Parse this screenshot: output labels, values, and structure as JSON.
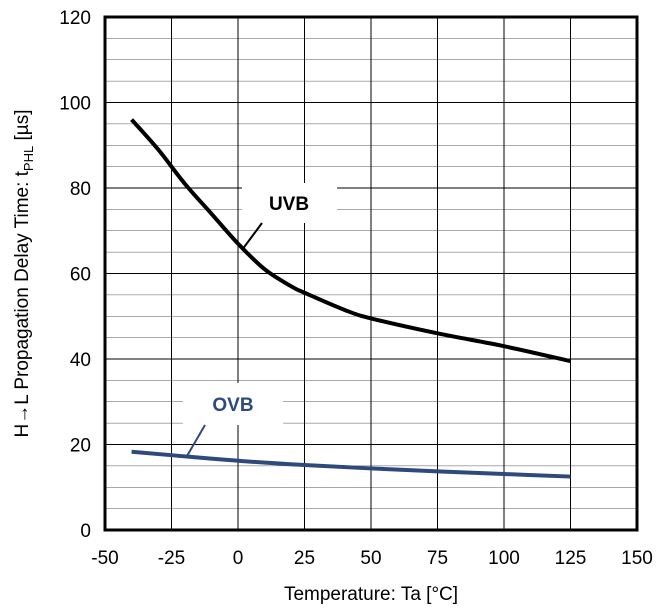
{
  "chart_data": {
    "type": "line",
    "title": "",
    "xlabel": "Temperature: Ta [°C]",
    "ylabel": {
      "prefix": "H→L Propagation Delay Time: t",
      "subscript": "PHL",
      "suffix": " [µs]"
    },
    "xlim": [
      -50,
      150
    ],
    "ylim": [
      0,
      120
    ],
    "xticks": [
      -50,
      -25,
      0,
      25,
      50,
      75,
      100,
      125,
      150
    ],
    "yticks": [
      0,
      20,
      40,
      60,
      80,
      100,
      120
    ],
    "x_minor_step": 25,
    "y_minor_step": 5,
    "grid": true,
    "series": [
      {
        "name": "UVB",
        "color": "#000000",
        "points": [
          [
            -40,
            96
          ],
          [
            -30,
            89
          ],
          [
            -20,
            81
          ],
          [
            -10,
            74
          ],
          [
            0,
            67
          ],
          [
            10,
            61
          ],
          [
            20,
            57
          ],
          [
            25,
            55.5
          ],
          [
            40,
            51.5
          ],
          [
            50,
            49.5
          ],
          [
            75,
            46
          ],
          [
            100,
            43
          ],
          [
            125,
            39.5
          ]
        ]
      },
      {
        "name": "OVB",
        "color": "#2e4a7d",
        "points": [
          [
            -40,
            18.3
          ],
          [
            -25,
            17.5
          ],
          [
            0,
            16.2
          ],
          [
            25,
            15.2
          ],
          [
            50,
            14.4
          ],
          [
            75,
            13.7
          ],
          [
            100,
            13.1
          ],
          [
            125,
            12.5
          ]
        ]
      }
    ]
  }
}
